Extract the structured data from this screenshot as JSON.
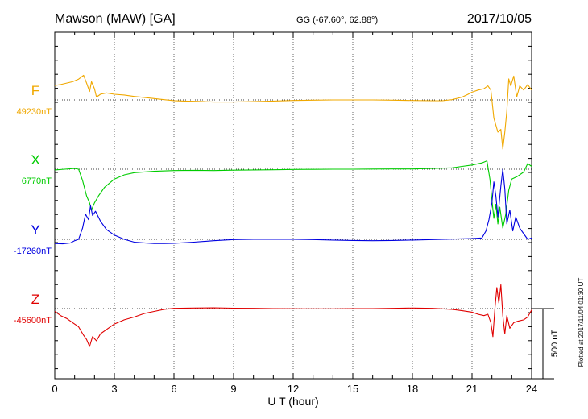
{
  "header": {
    "station": "Mawson (MAW)  [GA]",
    "coords": "GG (-67.60°,  62.88°)",
    "date": "2017/10/05"
  },
  "footer": {
    "plotted": "Plotted at 2017/11/04 01:30 UT"
  },
  "chart_data": {
    "type": "line",
    "title": "Mawson (MAW)  [GA]",
    "xlabel": "U T (hour)",
    "ylabel": "",
    "xlim": [
      0,
      24
    ],
    "x_ticks": [
      "0",
      "3",
      "6",
      "9",
      "12",
      "15",
      "18",
      "21",
      "24"
    ],
    "grid": true,
    "scale_bar": {
      "label": "500 nT",
      "value": 500
    },
    "series": [
      {
        "name": "F",
        "baseline_label": "49230nT",
        "baseline_nT": 49230,
        "color": "#f0a800",
        "points": [
          [
            0,
            49333
          ],
          [
            0.3,
            49340
          ],
          [
            0.6,
            49350
          ],
          [
            0.9,
            49360
          ],
          [
            1.2,
            49378
          ],
          [
            1.45,
            49405
          ],
          [
            1.6,
            49350
          ],
          [
            1.75,
            49290
          ],
          [
            1.85,
            49360
          ],
          [
            2.0,
            49310
          ],
          [
            2.1,
            49250
          ],
          [
            2.3,
            49270
          ],
          [
            2.6,
            49280
          ],
          [
            3,
            49270
          ],
          [
            3.5,
            49265
          ],
          [
            4,
            49255
          ],
          [
            4.5,
            49248
          ],
          [
            5,
            49240
          ],
          [
            5.5,
            49232
          ],
          [
            6,
            49225
          ],
          [
            6.5,
            49222
          ],
          [
            7,
            49220
          ],
          [
            7.5,
            49218
          ],
          [
            8,
            49215
          ],
          [
            9,
            49215
          ],
          [
            10,
            49218
          ],
          [
            11,
            49222
          ],
          [
            12,
            49226
          ],
          [
            13,
            49228
          ],
          [
            14,
            49230
          ],
          [
            15,
            49230
          ],
          [
            16,
            49230
          ],
          [
            17,
            49228
          ],
          [
            18,
            49226
          ],
          [
            19,
            49224
          ],
          [
            19.5,
            49224
          ],
          [
            20,
            49232
          ],
          [
            20.5,
            49250
          ],
          [
            20.8,
            49270
          ],
          [
            21,
            49285
          ],
          [
            21.3,
            49300
          ],
          [
            21.6,
            49310
          ],
          [
            21.8,
            49330
          ],
          [
            21.95,
            49300
          ],
          [
            22.1,
            49100
          ],
          [
            22.3,
            49000
          ],
          [
            22.45,
            49020
          ],
          [
            22.55,
            48880
          ],
          [
            22.65,
            49000
          ],
          [
            22.75,
            49150
          ],
          [
            22.85,
            49380
          ],
          [
            22.95,
            49330
          ],
          [
            23.1,
            49400
          ],
          [
            23.25,
            49250
          ],
          [
            23.4,
            49330
          ],
          [
            23.6,
            49300
          ],
          [
            23.8,
            49340
          ],
          [
            24,
            49300
          ]
        ]
      },
      {
        "name": "X",
        "baseline_label": "6770nT",
        "baseline_nT": 6770,
        "color": "#00cc00",
        "points": [
          [
            0,
            6765
          ],
          [
            0.5,
            6770
          ],
          [
            1.0,
            6775
          ],
          [
            1.2,
            6770
          ],
          [
            1.4,
            6690
          ],
          [
            1.6,
            6580
          ],
          [
            1.75,
            6530
          ],
          [
            1.85,
            6480
          ],
          [
            2.0,
            6530
          ],
          [
            2.2,
            6580
          ],
          [
            2.5,
            6640
          ],
          [
            3,
            6700
          ],
          [
            3.5,
            6730
          ],
          [
            4,
            6745
          ],
          [
            5,
            6755
          ],
          [
            6,
            6760
          ],
          [
            7,
            6762
          ],
          [
            8,
            6760
          ],
          [
            9,
            6763
          ],
          [
            10,
            6765
          ],
          [
            11,
            6766
          ],
          [
            12,
            6768
          ],
          [
            13,
            6769
          ],
          [
            14,
            6770
          ],
          [
            15,
            6770
          ],
          [
            16,
            6771
          ],
          [
            17,
            6772
          ],
          [
            18,
            6772
          ],
          [
            19,
            6775
          ],
          [
            20,
            6780
          ],
          [
            20.5,
            6790
          ],
          [
            21,
            6800
          ],
          [
            21.5,
            6815
          ],
          [
            21.75,
            6830
          ],
          [
            21.9,
            6700
          ],
          [
            22.0,
            6550
          ],
          [
            22.1,
            6420
          ],
          [
            22.2,
            6520
          ],
          [
            22.3,
            6380
          ],
          [
            22.4,
            6500
          ],
          [
            22.55,
            6350
          ],
          [
            22.7,
            6450
          ],
          [
            22.85,
            6620
          ],
          [
            23.0,
            6700
          ],
          [
            23.3,
            6720
          ],
          [
            23.6,
            6750
          ],
          [
            23.8,
            6810
          ],
          [
            24,
            6790
          ]
        ]
      },
      {
        "name": "Y",
        "baseline_label": "-17260nT",
        "baseline_nT": -17260,
        "color": "#0000e0",
        "points": [
          [
            0,
            -17290
          ],
          [
            0.4,
            -17292
          ],
          [
            0.8,
            -17285
          ],
          [
            1.0,
            -17270
          ],
          [
            1.2,
            -17260
          ],
          [
            1.4,
            -17180
          ],
          [
            1.55,
            -17080
          ],
          [
            1.7,
            -17120
          ],
          [
            1.8,
            -17020
          ],
          [
            1.9,
            -17090
          ],
          [
            2.05,
            -17060
          ],
          [
            2.3,
            -17130
          ],
          [
            2.6,
            -17190
          ],
          [
            3,
            -17230
          ],
          [
            3.5,
            -17260
          ],
          [
            4,
            -17280
          ],
          [
            4.5,
            -17285
          ],
          [
            5,
            -17290
          ],
          [
            5.5,
            -17290
          ],
          [
            6,
            -17288
          ],
          [
            7,
            -17280
          ],
          [
            8,
            -17270
          ],
          [
            9,
            -17262
          ],
          [
            10,
            -17260
          ],
          [
            11,
            -17260
          ],
          [
            12,
            -17260
          ],
          [
            13,
            -17262
          ],
          [
            14,
            -17265
          ],
          [
            15,
            -17268
          ],
          [
            16,
            -17270
          ],
          [
            17,
            -17268
          ],
          [
            18,
            -17265
          ],
          [
            19,
            -17262
          ],
          [
            20,
            -17258
          ],
          [
            21,
            -17255
          ],
          [
            21.5,
            -17250
          ],
          [
            21.7,
            -17200
          ],
          [
            21.85,
            -17120
          ],
          [
            22.0,
            -17000
          ],
          [
            22.1,
            -16850
          ],
          [
            22.2,
            -16950
          ],
          [
            22.3,
            -17100
          ],
          [
            22.45,
            -16880
          ],
          [
            22.55,
            -16760
          ],
          [
            22.65,
            -16900
          ],
          [
            22.75,
            -17150
          ],
          [
            22.9,
            -17050
          ],
          [
            23.05,
            -17200
          ],
          [
            23.2,
            -17100
          ],
          [
            23.4,
            -17180
          ],
          [
            23.6,
            -17220
          ],
          [
            23.8,
            -17260
          ],
          [
            24,
            -17250
          ]
        ]
      },
      {
        "name": "Z",
        "baseline_label": "-45600nT",
        "baseline_nT": -45600,
        "color": "#e00000",
        "points": [
          [
            0,
            -45620
          ],
          [
            0.3,
            -45650
          ],
          [
            0.6,
            -45670
          ],
          [
            0.9,
            -45700
          ],
          [
            1.2,
            -45730
          ],
          [
            1.45,
            -45790
          ],
          [
            1.6,
            -45820
          ],
          [
            1.75,
            -45870
          ],
          [
            1.9,
            -45800
          ],
          [
            2.1,
            -45830
          ],
          [
            2.3,
            -45780
          ],
          [
            2.6,
            -45750
          ],
          [
            3,
            -45710
          ],
          [
            3.5,
            -45680
          ],
          [
            4,
            -45660
          ],
          [
            4.5,
            -45635
          ],
          [
            5,
            -45620
          ],
          [
            5.5,
            -45605
          ],
          [
            6,
            -45598
          ],
          [
            7,
            -45596
          ],
          [
            8,
            -45595
          ],
          [
            9,
            -45597
          ],
          [
            10,
            -45598
          ],
          [
            11,
            -45600
          ],
          [
            12,
            -45601
          ],
          [
            13,
            -45602
          ],
          [
            14,
            -45602
          ],
          [
            15,
            -45600
          ],
          [
            16,
            -45600
          ],
          [
            17,
            -45598
          ],
          [
            18,
            -45596
          ],
          [
            19,
            -45598
          ],
          [
            20,
            -45605
          ],
          [
            20.5,
            -45615
          ],
          [
            21,
            -45625
          ],
          [
            21.3,
            -45640
          ],
          [
            21.6,
            -45650
          ],
          [
            21.8,
            -45640
          ],
          [
            21.95,
            -45700
          ],
          [
            22.05,
            -45800
          ],
          [
            22.15,
            -45600
          ],
          [
            22.25,
            -45450
          ],
          [
            22.35,
            -45560
          ],
          [
            22.45,
            -45430
          ],
          [
            22.55,
            -45650
          ],
          [
            22.65,
            -45780
          ],
          [
            22.75,
            -45650
          ],
          [
            22.9,
            -45740
          ],
          [
            23.1,
            -45700
          ],
          [
            23.3,
            -45690
          ],
          [
            23.6,
            -45680
          ],
          [
            23.8,
            -45660
          ],
          [
            24,
            -45610
          ]
        ]
      }
    ]
  }
}
